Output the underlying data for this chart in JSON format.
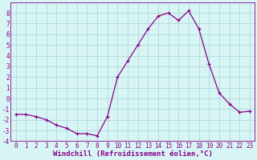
{
  "x": [
    0,
    1,
    2,
    3,
    4,
    5,
    6,
    7,
    8,
    9,
    10,
    11,
    12,
    13,
    14,
    15,
    16,
    17,
    18,
    19,
    20,
    21,
    22,
    23
  ],
  "y": [
    -1.5,
    -1.5,
    -1.7,
    -2.0,
    -2.5,
    -2.8,
    -3.3,
    -3.3,
    -3.5,
    -1.7,
    2.0,
    3.5,
    5.0,
    6.5,
    7.7,
    8.0,
    7.3,
    8.2,
    6.5,
    3.2,
    0.5,
    -0.5,
    -1.3,
    -1.2
  ],
  "line_color": "#880088",
  "marker": "+",
  "marker_size": 3,
  "bg_color": "#d8f5f5",
  "grid_color": "#b0d8d8",
  "xlabel": "Windchill (Refroidissement éolien,°C)",
  "ylim": [
    -4,
    9
  ],
  "xlim": [
    -0.5,
    23.5
  ],
  "yticks": [
    -4,
    -3,
    -2,
    -1,
    0,
    1,
    2,
    3,
    4,
    5,
    6,
    7,
    8
  ],
  "xticks": [
    0,
    1,
    2,
    3,
    4,
    5,
    6,
    7,
    8,
    9,
    10,
    11,
    12,
    13,
    14,
    15,
    16,
    17,
    18,
    19,
    20,
    21,
    22,
    23
  ],
  "tick_fontsize": 5.5,
  "xlabel_fontsize": 6.5
}
